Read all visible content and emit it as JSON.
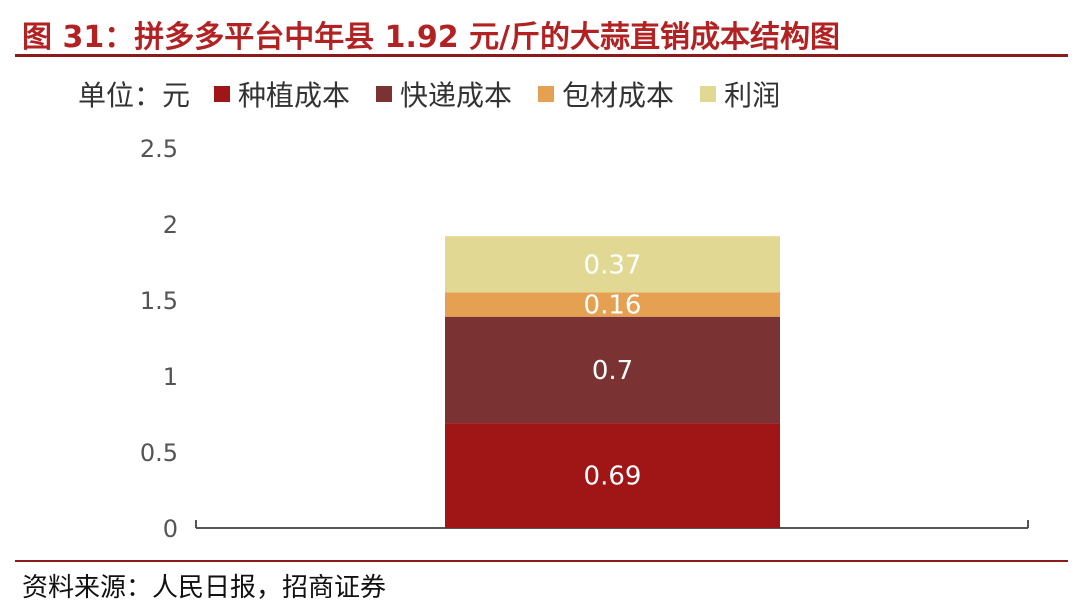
{
  "header": {
    "title": "图 31：拼多多平台中年县 1.92 元/斤的大蒜直销成本结构图"
  },
  "legend": {
    "unit_label": "单位：元",
    "items": [
      {
        "label": "种植成本",
        "color": "#a01616"
      },
      {
        "label": "快递成本",
        "color": "#7a3233"
      },
      {
        "label": "包材成本",
        "color": "#e5a052"
      },
      {
        "label": "利润",
        "color": "#e1d894"
      }
    ]
  },
  "chart_data": {
    "type": "bar",
    "stacked": true,
    "categories": [
      ""
    ],
    "ylim": [
      0,
      2.5
    ],
    "yticks": [
      "0",
      "0.5",
      "1",
      "1.5",
      "2",
      "2.5"
    ],
    "series": [
      {
        "name": "种植成本",
        "values": [
          0.69
        ],
        "labels": [
          "0.69"
        ],
        "color": "#a01616"
      },
      {
        "name": "快递成本",
        "values": [
          0.7
        ],
        "labels": [
          "0.7"
        ],
        "color": "#7a3233"
      },
      {
        "name": "包材成本",
        "values": [
          0.16
        ],
        "labels": [
          "0.16"
        ],
        "color": "#e5a052"
      },
      {
        "name": "利润",
        "values": [
          0.37
        ],
        "labels": [
          "0.37"
        ],
        "color": "#e1d894"
      }
    ],
    "grid": false,
    "legend_position": "top"
  },
  "footer": {
    "source": "资料来源：人民日报，招商证券"
  }
}
